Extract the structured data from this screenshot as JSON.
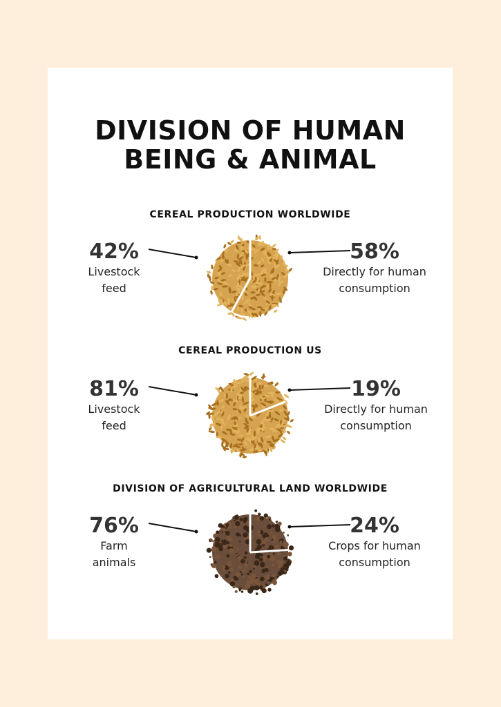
{
  "title": "DIVISION OF HUMAN\nBEING & ANIMAL",
  "sections": [
    {
      "heading": "CEREAL PRODUCTION WORLDWIDE",
      "left": {
        "percent": "42%",
        "label": "Livestock\nfeed",
        "value": 42
      },
      "right": {
        "percent": "58%",
        "label": "Directly for human\nconsumption",
        "value": 58
      },
      "texture": "grain"
    },
    {
      "heading": "CEREAL PRODUCTION US",
      "left": {
        "percent": "81%",
        "label": "Livestock\nfeed",
        "value": 81
      },
      "right": {
        "percent": "19%",
        "label": "Directly for human\nconsumption",
        "value": 19
      },
      "texture": "grain"
    },
    {
      "heading": "DIVISION OF AGRICULTURAL LAND WORLDWIDE",
      "left": {
        "percent": "76%",
        "label": "Farm\nanimals",
        "value": 76
      },
      "right": {
        "percent": "24%",
        "label": "Crops for human\nconsumption",
        "value": 24
      },
      "texture": "soil"
    }
  ],
  "colors": {
    "background": "#fdefdc",
    "card": "#ffffff",
    "grain": "#d29a3e",
    "grain_dark": "#a8701f",
    "soil": "#5a3b26",
    "soil_dark": "#3b2718",
    "text": "#111111"
  }
}
